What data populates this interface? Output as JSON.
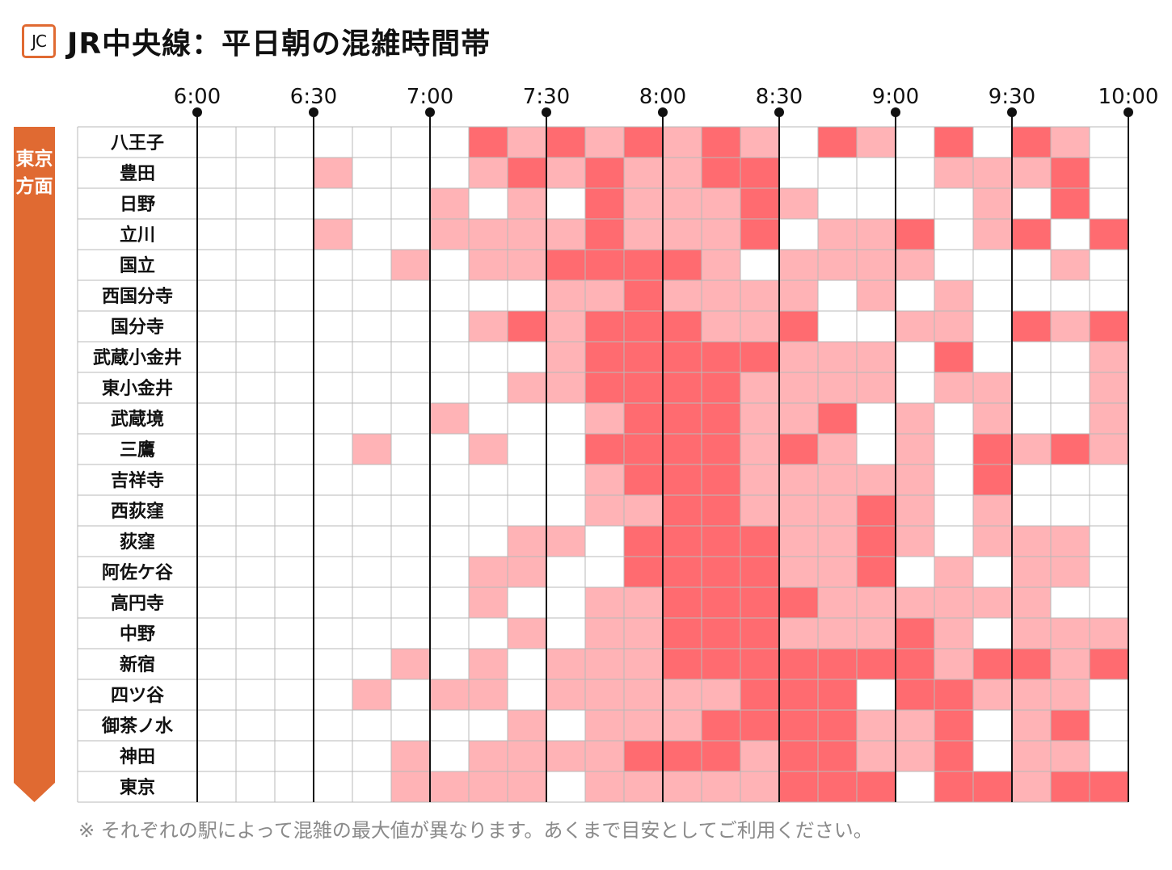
{
  "header": {
    "badge": "JC",
    "title": "JR中央線：平日朝の混雑時間帯"
  },
  "direction_label": "東京方面",
  "footnote": "※ それぞれの駅によって混雑の最大値が異なります。あくまで目安としてご利用ください。",
  "colors": {
    "level0": "#ffffff",
    "level1": "#ffb3b6",
    "level2": "#ff6b70",
    "grid": "#b8b8b8",
    "direction_bar": "#e06a32"
  },
  "chart_data": {
    "type": "heatmap",
    "time_labels": [
      "6:00",
      "6:30",
      "7:00",
      "7:30",
      "8:00",
      "8:30",
      "9:00",
      "9:30",
      "10:00"
    ],
    "x_range": [
      "6:00",
      "10:00"
    ],
    "slot_minutes": 10,
    "rows": [
      {
        "station": "八王子",
        "levels": [
          0,
          0,
          0,
          0,
          0,
          0,
          0,
          2,
          1,
          2,
          1,
          2,
          1,
          2,
          1,
          0,
          2,
          1,
          0,
          2,
          0,
          2,
          1,
          0
        ]
      },
      {
        "station": "豊田",
        "levels": [
          0,
          0,
          0,
          1,
          0,
          0,
          0,
          1,
          2,
          1,
          2,
          1,
          1,
          2,
          2,
          0,
          0,
          0,
          0,
          1,
          1,
          1,
          2,
          0
        ]
      },
      {
        "station": "日野",
        "levels": [
          0,
          0,
          0,
          0,
          0,
          0,
          1,
          0,
          1,
          0,
          2,
          1,
          1,
          1,
          2,
          1,
          0,
          0,
          0,
          0,
          1,
          0,
          2,
          0
        ]
      },
      {
        "station": "立川",
        "levels": [
          0,
          0,
          0,
          1,
          0,
          0,
          1,
          1,
          1,
          1,
          2,
          1,
          1,
          1,
          2,
          0,
          1,
          1,
          2,
          0,
          1,
          2,
          0,
          2
        ]
      },
      {
        "station": "国立",
        "levels": [
          0,
          0,
          0,
          0,
          0,
          1,
          0,
          1,
          1,
          2,
          2,
          2,
          2,
          1,
          0,
          1,
          1,
          1,
          1,
          0,
          0,
          0,
          1,
          0
        ]
      },
      {
        "station": "西国分寺",
        "levels": [
          0,
          0,
          0,
          0,
          0,
          0,
          0,
          0,
          0,
          1,
          1,
          2,
          1,
          1,
          1,
          1,
          0,
          1,
          0,
          1,
          0,
          0,
          0,
          0
        ]
      },
      {
        "station": "国分寺",
        "levels": [
          0,
          0,
          0,
          0,
          0,
          0,
          0,
          1,
          2,
          1,
          2,
          2,
          2,
          1,
          1,
          2,
          0,
          0,
          1,
          1,
          0,
          2,
          1,
          2
        ]
      },
      {
        "station": "武蔵小金井",
        "levels": [
          0,
          0,
          0,
          0,
          0,
          0,
          0,
          0,
          0,
          1,
          2,
          2,
          2,
          2,
          2,
          1,
          1,
          1,
          0,
          2,
          0,
          0,
          0,
          1
        ]
      },
      {
        "station": "東小金井",
        "levels": [
          0,
          0,
          0,
          0,
          0,
          0,
          0,
          0,
          1,
          1,
          2,
          2,
          2,
          2,
          1,
          1,
          1,
          1,
          0,
          1,
          1,
          0,
          0,
          1
        ]
      },
      {
        "station": "武蔵境",
        "levels": [
          0,
          0,
          0,
          0,
          0,
          0,
          1,
          0,
          0,
          0,
          1,
          2,
          2,
          2,
          1,
          1,
          2,
          0,
          1,
          0,
          1,
          0,
          0,
          1
        ]
      },
      {
        "station": "三鷹",
        "levels": [
          0,
          0,
          0,
          0,
          1,
          0,
          0,
          1,
          0,
          0,
          2,
          2,
          2,
          2,
          1,
          2,
          1,
          0,
          1,
          0,
          2,
          1,
          2,
          1
        ]
      },
      {
        "station": "吉祥寺",
        "levels": [
          0,
          0,
          0,
          0,
          0,
          0,
          0,
          0,
          0,
          0,
          1,
          2,
          2,
          2,
          1,
          1,
          1,
          1,
          1,
          0,
          2,
          0,
          0,
          0
        ]
      },
      {
        "station": "西荻窪",
        "levels": [
          0,
          0,
          0,
          0,
          0,
          0,
          0,
          0,
          0,
          0,
          1,
          1,
          2,
          2,
          1,
          1,
          1,
          2,
          1,
          0,
          1,
          0,
          0,
          0
        ]
      },
      {
        "station": "荻窪",
        "levels": [
          0,
          0,
          0,
          0,
          0,
          0,
          0,
          0,
          1,
          1,
          0,
          2,
          2,
          2,
          2,
          1,
          1,
          2,
          1,
          0,
          1,
          1,
          1,
          0
        ]
      },
      {
        "station": "阿佐ケ谷",
        "levels": [
          0,
          0,
          0,
          0,
          0,
          0,
          0,
          1,
          1,
          0,
          0,
          2,
          2,
          2,
          2,
          1,
          1,
          2,
          0,
          1,
          0,
          1,
          1,
          0
        ]
      },
      {
        "station": "高円寺",
        "levels": [
          0,
          0,
          0,
          0,
          0,
          0,
          0,
          1,
          0,
          0,
          1,
          1,
          2,
          2,
          2,
          2,
          1,
          1,
          1,
          1,
          1,
          1,
          0,
          0
        ]
      },
      {
        "station": "中野",
        "levels": [
          0,
          0,
          0,
          0,
          0,
          0,
          0,
          0,
          1,
          0,
          1,
          1,
          2,
          2,
          2,
          1,
          1,
          1,
          2,
          1,
          0,
          1,
          1,
          1
        ]
      },
      {
        "station": "新宿",
        "levels": [
          0,
          0,
          0,
          0,
          0,
          1,
          0,
          1,
          0,
          1,
          1,
          1,
          2,
          2,
          2,
          2,
          2,
          2,
          2,
          1,
          2,
          2,
          1,
          2
        ]
      },
      {
        "station": "四ツ谷",
        "levels": [
          0,
          0,
          0,
          0,
          1,
          0,
          1,
          1,
          0,
          1,
          1,
          1,
          1,
          1,
          2,
          2,
          2,
          0,
          2,
          2,
          1,
          1,
          1,
          0
        ]
      },
      {
        "station": "御茶ノ水",
        "levels": [
          0,
          0,
          0,
          0,
          0,
          0,
          0,
          0,
          1,
          0,
          1,
          1,
          1,
          2,
          2,
          2,
          2,
          1,
          1,
          2,
          0,
          1,
          2,
          0
        ]
      },
      {
        "station": "神田",
        "levels": [
          0,
          0,
          0,
          0,
          0,
          1,
          0,
          1,
          1,
          1,
          1,
          2,
          2,
          2,
          1,
          2,
          2,
          1,
          1,
          2,
          0,
          1,
          1,
          0
        ]
      },
      {
        "station": "東京",
        "levels": [
          0,
          0,
          0,
          0,
          0,
          1,
          1,
          1,
          1,
          0,
          1,
          1,
          1,
          1,
          1,
          2,
          2,
          2,
          0,
          2,
          2,
          1,
          2,
          2
        ]
      }
    ]
  }
}
